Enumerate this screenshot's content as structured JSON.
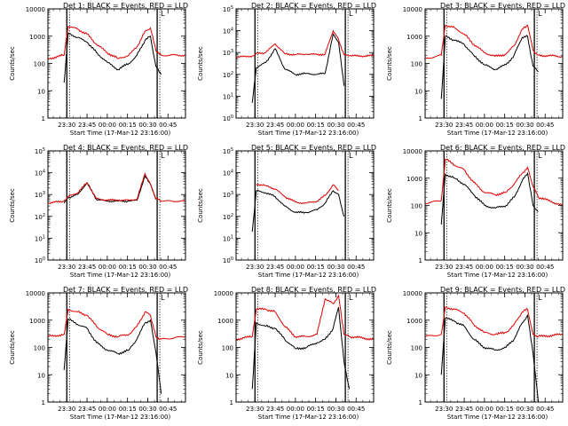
{
  "figure": {
    "start_time_label": "Start Time (17-Mar-12 23:16:00)",
    "ylabel": "Counts/sec",
    "time_ticks": [
      "23:30",
      "23:45",
      "00:00",
      "00:15",
      "00:30",
      "00:45"
    ],
    "marker_glyph": "L",
    "colors": {
      "events": "#000000",
      "lld": "#e00000",
      "frame": "#000000",
      "background": "#ffffff"
    }
  },
  "chart_data": [
    {
      "id": 1,
      "type": "line",
      "title": "Det 1: BLACK = Events, RED = LLD",
      "scale": "log",
      "ylim": [
        1,
        10000
      ],
      "ytick_labels": [
        "1",
        "10",
        "100",
        "1000",
        "10000"
      ],
      "x": [
        "23:16",
        "23:28",
        "23:31",
        "23:38",
        "23:45",
        "23:52",
        "24:00",
        "24:08",
        "24:16",
        "24:22",
        "24:28",
        "24:32",
        "24:36",
        "24:40",
        "24:58"
      ],
      "series": [
        {
          "name": "Events",
          "values": [
            null,
            20,
            1300,
            900,
            600,
            250,
            110,
            60,
            100,
            200,
            700,
            1000,
            80,
            40,
            null
          ]
        },
        {
          "name": "LLD",
          "values": [
            150,
            200,
            2300,
            1800,
            1200,
            500,
            250,
            150,
            200,
            400,
            1500,
            2000,
            300,
            200,
            200
          ]
        }
      ]
    },
    {
      "id": 2,
      "type": "line",
      "title": "Det 2: BLACK = Events, RED = LLD",
      "scale": "log",
      "ylim": [
        1,
        100000
      ],
      "ytick_labels": [
        "10^0",
        "10^1",
        "10^2",
        "10^3",
        "10^4",
        "10^5"
      ],
      "x": [
        "23:16",
        "23:28",
        "23:31",
        "23:38",
        "23:45",
        "23:52",
        "24:00",
        "24:08",
        "24:16",
        "24:22",
        "24:28",
        "24:32",
        "24:36",
        "24:40",
        "24:58"
      ],
      "series": [
        {
          "name": "Events",
          "values": [
            null,
            5,
            200,
            350,
            1500,
            180,
            100,
            110,
            100,
            110,
            7000,
            3000,
            30,
            null,
            null
          ]
        },
        {
          "name": "LLD",
          "values": [
            600,
            700,
            900,
            1000,
            2500,
            900,
            800,
            850,
            800,
            850,
            10000,
            4000,
            800,
            700,
            700
          ]
        }
      ]
    },
    {
      "id": 3,
      "type": "line",
      "title": "Det 3: BLACK = Events, RED = LLD",
      "scale": "log",
      "ylim": [
        1,
        10000
      ],
      "ytick_labels": [
        "1",
        "10",
        "100",
        "1000",
        "10000"
      ],
      "x": [
        "23:16",
        "23:28",
        "23:31",
        "23:38",
        "23:45",
        "23:52",
        "24:00",
        "24:08",
        "24:16",
        "24:22",
        "24:28",
        "24:32",
        "24:36",
        "24:40",
        "24:58"
      ],
      "series": [
        {
          "name": "Events",
          "values": [
            null,
            5,
            1000,
            700,
            500,
            200,
            90,
            60,
            90,
            200,
            900,
            1000,
            80,
            50,
            null
          ]
        },
        {
          "name": "LLD",
          "values": [
            150,
            200,
            2500,
            2000,
            1200,
            500,
            250,
            180,
            220,
            450,
            1800,
            2500,
            300,
            200,
            180
          ]
        }
      ]
    },
    {
      "id": 4,
      "type": "line",
      "title": "Det 4: BLACK = Events, RED = LLD",
      "scale": "log",
      "ylim": [
        1,
        100000
      ],
      "ytick_labels": [
        "10^0",
        "10^1",
        "10^2",
        "10^3",
        "10^4",
        "10^5"
      ],
      "x": [
        "23:16",
        "23:28",
        "23:31",
        "23:38",
        "23:45",
        "23:52",
        "24:00",
        "24:08",
        "24:16",
        "24:22",
        "24:28",
        "24:32",
        "24:36",
        "24:40",
        "24:58"
      ],
      "series": [
        {
          "name": "Events",
          "values": [
            null,
            400,
            700,
            1000,
            3500,
            600,
            500,
            500,
            500,
            550,
            7000,
            3000,
            600,
            null,
            null
          ]
        },
        {
          "name": "LLD",
          "values": [
            400,
            500,
            800,
            1200,
            3500,
            650,
            550,
            550,
            550,
            600,
            9000,
            3000,
            650,
            500,
            500
          ]
        }
      ]
    },
    {
      "id": 5,
      "type": "line",
      "title": "Det 5: BLACK = Events, RED = LLD",
      "scale": "log",
      "ylim": [
        1,
        100000
      ],
      "ytick_labels": [
        "10^0",
        "10^1",
        "10^2",
        "10^3",
        "10^4",
        "10^5"
      ],
      "x": [
        "23:16",
        "23:28",
        "23:31",
        "23:38",
        "23:45",
        "23:52",
        "24:00",
        "24:08",
        "24:16",
        "24:22",
        "24:28",
        "24:32",
        "24:36",
        "24:40",
        "24:58"
      ],
      "series": [
        {
          "name": "Events",
          "values": [
            null,
            20,
            1500,
            1200,
            800,
            300,
            150,
            150,
            200,
            400,
            1500,
            1000,
            100,
            null,
            null
          ]
        },
        {
          "name": "LLD",
          "values": [
            null,
            null,
            3000,
            2600,
            1800,
            800,
            450,
            400,
            500,
            900,
            2800,
            1500,
            null,
            null,
            null
          ]
        }
      ]
    },
    {
      "id": 6,
      "type": "line",
      "title": "Det 6: BLACK = Events, RED = LLD",
      "scale": "log",
      "ylim": [
        1,
        10000
      ],
      "ytick_labels": [
        "1",
        "10",
        "100",
        "1000",
        "10000"
      ],
      "x": [
        "23:16",
        "23:28",
        "23:31",
        "23:38",
        "23:45",
        "23:52",
        "24:00",
        "24:08",
        "24:16",
        "24:22",
        "24:28",
        "24:32",
        "24:36",
        "24:40",
        "24:58"
      ],
      "series": [
        {
          "name": "Events",
          "values": [
            null,
            20,
            1400,
            1000,
            600,
            250,
            100,
            80,
            100,
            200,
            800,
            1500,
            100,
            60,
            null
          ]
        },
        {
          "name": "LLD",
          "values": [
            120,
            150,
            5000,
            3000,
            2000,
            700,
            300,
            250,
            300,
            600,
            1500,
            2500,
            500,
            200,
            100
          ]
        }
      ]
    },
    {
      "id": 7,
      "type": "line",
      "title": "Det 7: BLACK = Events, RED = LLD",
      "scale": "log",
      "ylim": [
        1,
        10000
      ],
      "ytick_labels": [
        "1",
        "10",
        "100",
        "1000",
        "10000"
      ],
      "x": [
        "23:16",
        "23:28",
        "23:31",
        "23:38",
        "23:45",
        "23:52",
        "24:00",
        "24:08",
        "24:16",
        "24:22",
        "24:28",
        "24:32",
        "24:36",
        "24:40",
        "24:58"
      ],
      "series": [
        {
          "name": "Events",
          "values": [
            null,
            15,
            1100,
            700,
            500,
            150,
            80,
            60,
            80,
            200,
            800,
            1000,
            70,
            2,
            null
          ]
        },
        {
          "name": "LLD",
          "values": [
            250,
            300,
            2500,
            2000,
            1500,
            600,
            300,
            250,
            300,
            600,
            2000,
            1500,
            250,
            200,
            250
          ]
        }
      ]
    },
    {
      "id": 8,
      "type": "line",
      "title": "Det 8: BLACK = Events, RED = LLD",
      "scale": "log",
      "ylim": [
        1,
        10000
      ],
      "ytick_labels": [
        "1",
        "10",
        "100",
        "1000",
        "10000"
      ],
      "x": [
        "23:16",
        "23:28",
        "23:31",
        "23:38",
        "23:45",
        "23:52",
        "24:00",
        "24:08",
        "24:16",
        "24:22",
        "24:28",
        "24:32",
        "24:36",
        "24:40",
        "24:58"
      ],
      "series": [
        {
          "name": "Events",
          "values": [
            null,
            3,
            800,
            600,
            500,
            200,
            90,
            100,
            150,
            200,
            500,
            3000,
            30,
            3,
            null
          ]
        },
        {
          "name": "LLD",
          "values": [
            200,
            250,
            2500,
            2500,
            2000,
            600,
            250,
            250,
            300,
            6000,
            4000,
            8000,
            300,
            250,
            200
          ]
        }
      ]
    },
    {
      "id": 9,
      "type": "line",
      "title": "Det 9: BLACK = Events, RED = LLD",
      "scale": "log",
      "ylim": [
        1,
        10000
      ],
      "ytick_labels": [
        "1",
        "10",
        "100",
        "1000",
        "10000"
      ],
      "x": [
        "23:16",
        "23:28",
        "23:31",
        "23:38",
        "23:45",
        "23:52",
        "24:00",
        "24:08",
        "24:16",
        "24:22",
        "24:28",
        "24:32",
        "24:36",
        "24:40",
        "24:58"
      ],
      "series": [
        {
          "name": "Events",
          "values": [
            null,
            10,
            1200,
            900,
            600,
            200,
            100,
            80,
            100,
            200,
            800,
            1500,
            60,
            1,
            null
          ]
        },
        {
          "name": "LLD",
          "values": [
            250,
            300,
            3000,
            2500,
            1800,
            700,
            350,
            300,
            350,
            700,
            2000,
            2500,
            300,
            250,
            300
          ]
        }
      ]
    }
  ]
}
